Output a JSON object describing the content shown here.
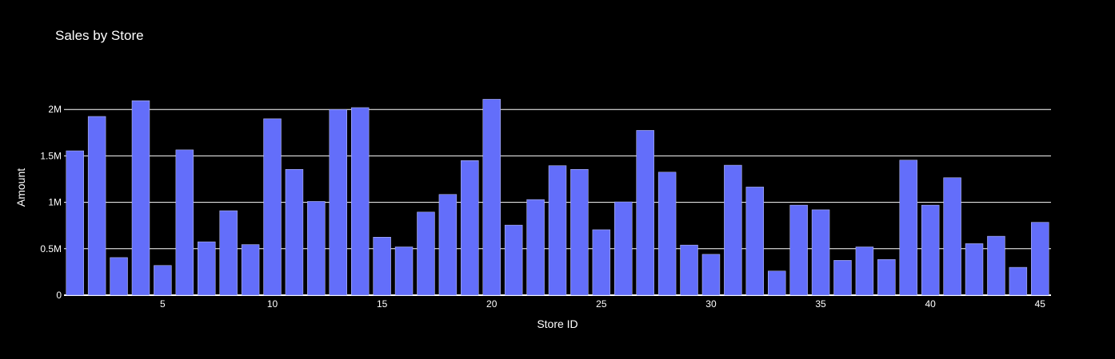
{
  "chart_data": {
    "type": "bar",
    "title": "Sales by Store",
    "xlabel": "Store ID",
    "ylabel": "Amount",
    "x": [
      1,
      2,
      3,
      4,
      5,
      6,
      7,
      8,
      9,
      10,
      11,
      12,
      13,
      14,
      15,
      16,
      17,
      18,
      19,
      20,
      21,
      22,
      23,
      24,
      25,
      26,
      27,
      28,
      29,
      30,
      31,
      32,
      33,
      34,
      35,
      36,
      37,
      38,
      39,
      40,
      41,
      42,
      43,
      44,
      45
    ],
    "values": [
      1555000,
      1925000,
      405000,
      2095000,
      320000,
      1565000,
      575000,
      910000,
      545000,
      1900000,
      1355000,
      1010000,
      2000000,
      2020000,
      625000,
      520000,
      895000,
      1085000,
      1450000,
      2110000,
      755000,
      1030000,
      1395000,
      1355000,
      705000,
      1005000,
      1775000,
      1325000,
      540000,
      440000,
      1400000,
      1165000,
      260000,
      970000,
      920000,
      375000,
      520000,
      385000,
      1455000,
      970000,
      1265000,
      555000,
      635000,
      300000,
      785000
    ],
    "xlim": [
      0.5,
      45.5
    ],
    "ylim": [
      0,
      2320000
    ],
    "xticks": [
      5,
      10,
      15,
      20,
      25,
      30,
      35,
      40,
      45
    ],
    "xtick_labels": [
      "5",
      "10",
      "15",
      "20",
      "25",
      "30",
      "35",
      "40",
      "45"
    ],
    "yticks": [
      0,
      500000,
      1000000,
      1500000,
      2000000
    ],
    "ytick_labels": [
      "0",
      "0.5M",
      "1M",
      "1.5M",
      "2M"
    ],
    "grid": true,
    "colors": {
      "background": "#000000",
      "bar": "#636efa",
      "bar_outline": "#c8ccfd",
      "grid": "#ffffff",
      "text": "#ffffff"
    }
  }
}
